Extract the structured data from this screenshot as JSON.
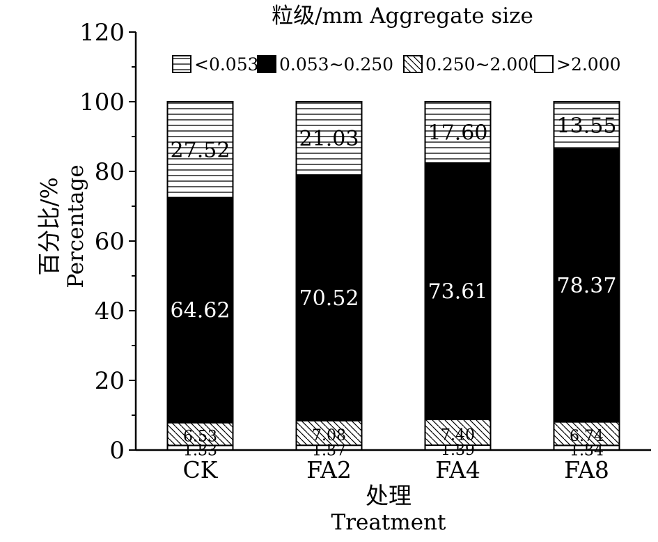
{
  "chart_data": {
    "type": "bar",
    "stacked": true,
    "title": "粒级/mm Aggregate size",
    "xlabel": [
      "处理",
      "Treatment"
    ],
    "ylabel": [
      "百分比/%",
      "Percentage"
    ],
    "ylim": [
      0,
      120
    ],
    "yticks": [
      "0",
      "20",
      "40",
      "60",
      "80",
      "100",
      "120"
    ],
    "categories": [
      "CK",
      "FA2",
      "FA4",
      "FA8"
    ],
    "legend_position": "top",
    "grid": false,
    "series": [
      {
        "name": ">2.000",
        "values": [
          1.33,
          1.37,
          1.39,
          1.34
        ],
        "labels": [
          "1.33",
          "1.37",
          "1.39",
          "1.34"
        ],
        "pattern": "white"
      },
      {
        "name": "0.250~2.000",
        "values": [
          6.53,
          7.08,
          7.4,
          6.74
        ],
        "labels": [
          "6.53",
          "7.08",
          "7.40",
          "6.74"
        ],
        "pattern": "diagonal"
      },
      {
        "name": "0.053~0.250",
        "values": [
          64.62,
          70.52,
          73.61,
          78.37
        ],
        "labels": [
          "64.62",
          "70.52",
          "73.61",
          "78.37"
        ],
        "pattern": "black"
      },
      {
        "name": "<0.053",
        "values": [
          27.52,
          21.03,
          17.6,
          13.55
        ],
        "labels": [
          "27.52",
          "21.03",
          "17.60",
          "13.55"
        ],
        "pattern": "horizontal"
      }
    ],
    "legend_order": [
      "<0.053",
      "0.053~0.250",
      "0.250~2.000",
      ">2.000"
    ]
  }
}
